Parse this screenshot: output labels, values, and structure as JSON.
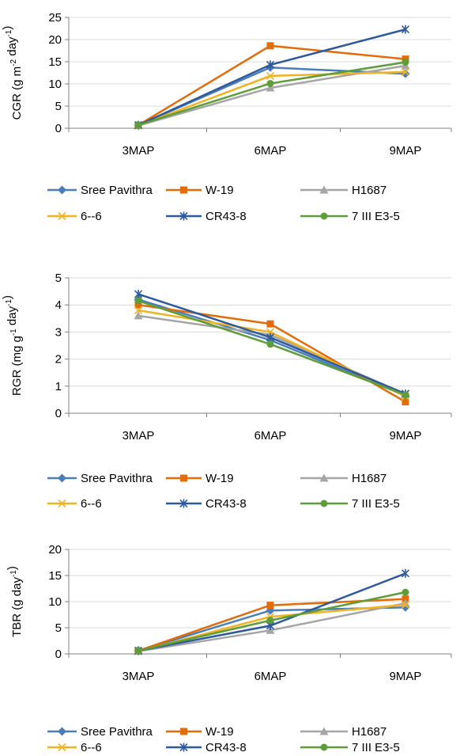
{
  "chart_data": [
    {
      "type": "line",
      "categories": [
        "3MAP",
        "6MAP",
        "9MAP"
      ],
      "ylabel": "CGR (g m",
      "ylabel_sup1": "-2",
      "ylabel_mid": " day",
      "ylabel_sup2": "-1",
      "ylabel_end": ")",
      "ylim": [
        0,
        25
      ],
      "yticks": [
        "0",
        "5",
        "10",
        "15",
        "20",
        "25"
      ],
      "grid": true,
      "legend": "bottom",
      "series": [
        {
          "name": "Sree Pavithra",
          "values": [
            0.7,
            13.7,
            12.3
          ],
          "color": "#4A7EBB",
          "marker": "diamond"
        },
        {
          "name": "W-19",
          "values": [
            0.7,
            18.6,
            15.6
          ],
          "color": "#E36C0A",
          "marker": "square"
        },
        {
          "name": "H1687",
          "values": [
            0.6,
            9.1,
            14.1
          ],
          "color": "#A5A5A5",
          "marker": "triangle"
        },
        {
          "name": "6--6",
          "values": [
            0.6,
            11.8,
            12.7
          ],
          "color": "#F0B323",
          "marker": "x"
        },
        {
          "name": "CR43-8",
          "values": [
            0.7,
            14.3,
            22.3
          ],
          "color": "#2E5A9C",
          "marker": "star"
        },
        {
          "name": "7 III E3-5",
          "values": [
            0.7,
            10.1,
            14.9
          ],
          "color": "#5E9E3A",
          "marker": "circle"
        }
      ]
    },
    {
      "type": "line",
      "categories": [
        "3MAP",
        "6MAP",
        "9MAP"
      ],
      "ylabel": "RGR (mg g",
      "ylabel_sup1": "-1",
      "ylabel_mid": " day",
      "ylabel_sup2": "-1",
      "ylabel_end": ")",
      "ylim": [
        0,
        5
      ],
      "yticks": [
        "0",
        "1",
        "2",
        "3",
        "4",
        "5"
      ],
      "grid": true,
      "legend": "bottom",
      "series": [
        {
          "name": "Sree Pavithra",
          "values": [
            4.2,
            2.7,
            0.65
          ],
          "color": "#4A7EBB",
          "marker": "diamond"
        },
        {
          "name": "W-19",
          "values": [
            4.0,
            3.3,
            0.42
          ],
          "color": "#E36C0A",
          "marker": "square"
        },
        {
          "name": "H1687",
          "values": [
            3.6,
            2.9,
            0.7
          ],
          "color": "#A5A5A5",
          "marker": "triangle"
        },
        {
          "name": "6--6",
          "values": [
            3.8,
            3.0,
            0.62
          ],
          "color": "#F0B323",
          "marker": "x"
        },
        {
          "name": "CR43-8",
          "values": [
            4.4,
            2.8,
            0.72
          ],
          "color": "#2E5A9C",
          "marker": "star"
        },
        {
          "name": "7 III E3-5",
          "values": [
            4.15,
            2.55,
            0.68
          ],
          "color": "#5E9E3A",
          "marker": "circle"
        }
      ]
    },
    {
      "type": "line",
      "categories": [
        "3MAP",
        "6MAP",
        "9MAP"
      ],
      "ylabel": "TBR (g day",
      "ylabel_sup1": "-1",
      "ylabel_mid": "",
      "ylabel_sup2": "",
      "ylabel_end": ")",
      "ylim": [
        0,
        20
      ],
      "yticks": [
        "0",
        "5",
        "10",
        "15",
        "20"
      ],
      "grid": true,
      "legend": "bottom",
      "series": [
        {
          "name": "Sree Pavithra",
          "values": [
            0.6,
            8.3,
            8.9
          ],
          "color": "#4A7EBB",
          "marker": "diamond"
        },
        {
          "name": "W-19",
          "values": [
            0.6,
            9.3,
            10.5
          ],
          "color": "#E36C0A",
          "marker": "square"
        },
        {
          "name": "H1687",
          "values": [
            0.5,
            4.5,
            9.7
          ],
          "color": "#A5A5A5",
          "marker": "triangle"
        },
        {
          "name": "6--6",
          "values": [
            0.5,
            7.1,
            9.4
          ],
          "color": "#F0B323",
          "marker": "x"
        },
        {
          "name": "CR43-8",
          "values": [
            0.6,
            5.4,
            15.4
          ],
          "color": "#2E5A9C",
          "marker": "star"
        },
        {
          "name": "7 III E3-5",
          "values": [
            0.6,
            6.4,
            11.8
          ],
          "color": "#5E9E3A",
          "marker": "circle"
        }
      ]
    }
  ]
}
